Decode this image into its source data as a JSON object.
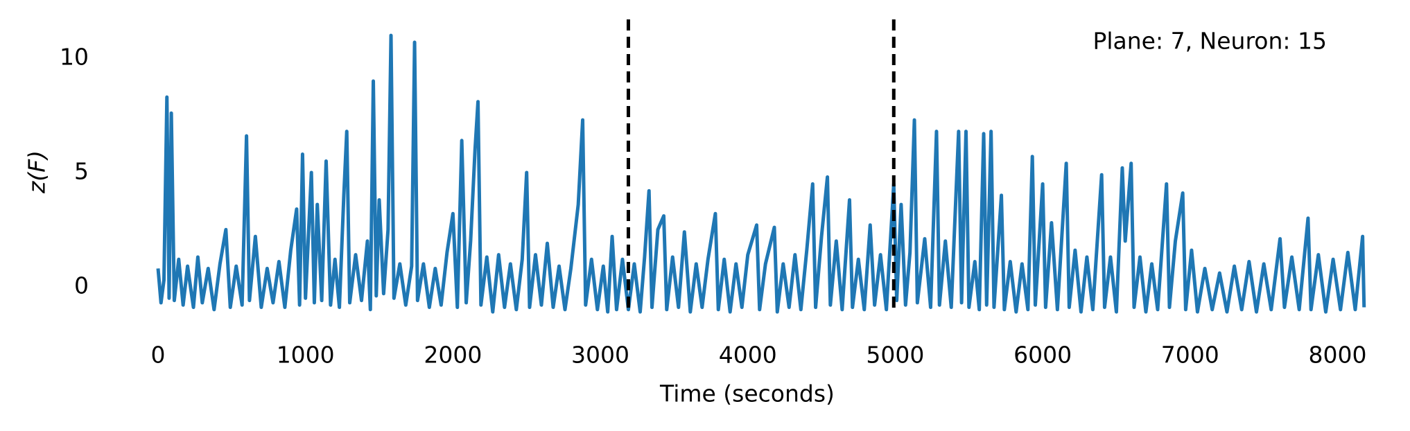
{
  "chart_data": {
    "type": "line",
    "annotation": "Plane: 7, Neuron: 15",
    "xlabel": "Time (seconds)",
    "ylabel": "z(F)",
    "color": "#1f77b4",
    "xlim": [
      0,
      8200
    ],
    "ylim": [
      -1.4,
      11.7
    ],
    "xticks": [
      0,
      1000,
      2000,
      3000,
      4000,
      5000,
      6000,
      7000,
      8000
    ],
    "yticks": [
      0,
      5,
      10
    ],
    "vlines": [
      3190,
      4990
    ],
    "x": [
      0,
      20,
      40,
      60,
      75,
      90,
      110,
      140,
      170,
      200,
      240,
      270,
      300,
      340,
      380,
      420,
      460,
      490,
      530,
      570,
      600,
      620,
      660,
      700,
      740,
      780,
      820,
      860,
      900,
      940,
      960,
      980,
      1000,
      1040,
      1060,
      1080,
      1110,
      1140,
      1170,
      1200,
      1230,
      1260,
      1280,
      1300,
      1340,
      1380,
      1420,
      1440,
      1460,
      1480,
      1500,
      1530,
      1560,
      1580,
      1600,
      1640,
      1680,
      1720,
      1740,
      1760,
      1800,
      1840,
      1880,
      1920,
      1960,
      2000,
      2030,
      2060,
      2090,
      2120,
      2150,
      2170,
      2190,
      2230,
      2270,
      2310,
      2350,
      2390,
      2430,
      2470,
      2500,
      2520,
      2560,
      2600,
      2640,
      2680,
      2720,
      2760,
      2800,
      2850,
      2880,
      2900,
      2940,
      2980,
      3020,
      3050,
      3080,
      3110,
      3150,
      3190,
      3230,
      3270,
      3300,
      3330,
      3350,
      3390,
      3430,
      3450,
      3490,
      3530,
      3570,
      3610,
      3650,
      3690,
      3730,
      3780,
      3800,
      3840,
      3880,
      3920,
      3960,
      4000,
      4060,
      4080,
      4120,
      4180,
      4200,
      4240,
      4280,
      4320,
      4360,
      4400,
      4440,
      4460,
      4500,
      4540,
      4560,
      4600,
      4640,
      4690,
      4710,
      4750,
      4790,
      4830,
      4860,
      4900,
      4940,
      4990,
      5010,
      5040,
      5070,
      5100,
      5130,
      5150,
      5200,
      5240,
      5280,
      5300,
      5340,
      5380,
      5430,
      5450,
      5480,
      5500,
      5540,
      5570,
      5600,
      5620,
      5650,
      5670,
      5720,
      5740,
      5780,
      5820,
      5860,
      5900,
      5930,
      5950,
      6000,
      6020,
      6060,
      6100,
      6160,
      6180,
      6220,
      6260,
      6300,
      6340,
      6400,
      6420,
      6460,
      6500,
      6540,
      6560,
      6600,
      6620,
      6660,
      6700,
      6740,
      6780,
      6840,
      6860,
      6900,
      6950,
      6970,
      7010,
      7050,
      7100,
      7150,
      7200,
      7250,
      7300,
      7350,
      7400,
      7450,
      7500,
      7550,
      7610,
      7640,
      7690,
      7740,
      7800,
      7820,
      7870,
      7920,
      7970,
      8020,
      8070,
      8120,
      8170,
      8180
    ],
    "values": [
      0.8,
      -0.7,
      0.3,
      8.3,
      -0.5,
      7.6,
      -0.6,
      1.2,
      -0.8,
      0.9,
      -0.9,
      1.3,
      -0.7,
      0.8,
      -1.0,
      1.0,
      2.5,
      -0.9,
      0.9,
      -0.8,
      6.6,
      -0.6,
      2.2,
      -0.9,
      0.8,
      -0.7,
      1.1,
      -0.9,
      1.6,
      3.4,
      -0.8,
      5.8,
      -0.5,
      5.0,
      -0.7,
      3.6,
      -0.6,
      5.5,
      -0.8,
      1.2,
      -0.9,
      4.0,
      6.8,
      -0.7,
      1.4,
      -0.6,
      2.0,
      -1.0,
      9.0,
      -0.4,
      3.8,
      -0.3,
      2.5,
      11.0,
      -0.5,
      1.0,
      -0.8,
      0.9,
      10.7,
      -0.6,
      1.0,
      -0.9,
      0.8,
      -0.8,
      1.5,
      3.2,
      -0.9,
      6.4,
      -0.7,
      2.0,
      6.0,
      8.1,
      -0.8,
      1.3,
      -1.1,
      1.4,
      -0.9,
      1.0,
      -1.0,
      1.2,
      5.0,
      -0.9,
      1.4,
      -0.8,
      1.9,
      -0.9,
      0.9,
      -1.0,
      0.8,
      3.6,
      7.3,
      -0.8,
      1.2,
      -1.0,
      0.9,
      -1.1,
      2.2,
      -1.0,
      1.2,
      -1.0,
      1.0,
      -1.1,
      1.3,
      4.2,
      -0.9,
      2.5,
      3.1,
      -1.0,
      1.3,
      -0.9,
      2.4,
      -1.1,
      1.0,
      -0.9,
      1.2,
      3.2,
      -1.0,
      1.2,
      -1.1,
      1.0,
      -0.9,
      1.4,
      2.7,
      -1.0,
      1.0,
      2.6,
      -1.1,
      1.0,
      -0.9,
      1.4,
      -1.0,
      1.6,
      4.5,
      -0.9,
      2.2,
      4.8,
      -0.8,
      2.0,
      -1.0,
      3.8,
      -0.9,
      1.2,
      -1.0,
      2.7,
      -0.8,
      1.4,
      -1.0,
      4.5,
      -0.6,
      3.6,
      -0.8,
      1.5,
      7.3,
      -0.7,
      2.1,
      -0.9,
      6.8,
      -0.8,
      2.0,
      -0.9,
      6.8,
      -0.7,
      6.8,
      -0.9,
      1.1,
      -1.0,
      6.7,
      -0.8,
      6.8,
      -0.9,
      4.0,
      -1.0,
      1.1,
      -1.1,
      1.0,
      -1.0,
      5.7,
      -0.8,
      4.5,
      -0.9,
      2.8,
      -1.0,
      5.4,
      -0.9,
      1.6,
      -1.1,
      1.3,
      -1.0,
      4.9,
      -0.9,
      1.3,
      -1.1,
      5.2,
      2.0,
      5.4,
      -0.9,
      1.3,
      -1.1,
      1.0,
      -1.0,
      4.5,
      -0.9,
      2.0,
      4.1,
      -1.0,
      1.6,
      -1.1,
      0.8,
      -1.0,
      0.6,
      -1.1,
      0.9,
      -1.0,
      1.1,
      -1.1,
      1.0,
      -1.0,
      2.1,
      -0.9,
      1.3,
      -1.0,
      3.0,
      -1.0,
      1.4,
      -1.1,
      1.2,
      -1.0,
      1.5,
      -1.0,
      2.2,
      -0.9
    ]
  }
}
